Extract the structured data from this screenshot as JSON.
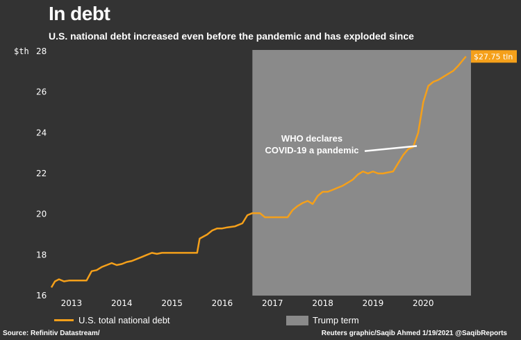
{
  "header": {
    "title": "In debt",
    "subtitle": "U.S. national debt increased even before the pandemic and has exploded since"
  },
  "chart_data": {
    "type": "line",
    "title": "In debt",
    "subtitle": "U.S. national debt increased even before the pandemic and has exploded since",
    "ylabel": "$th",
    "ylim": [
      16,
      28
    ],
    "yticks": [
      16,
      18,
      20,
      22,
      24,
      26,
      28
    ],
    "xlim": [
      2012.6,
      2020.95
    ],
    "xticks": [
      2013,
      2014,
      2015,
      2016,
      2017,
      2018,
      2019,
      2020
    ],
    "grid": false,
    "series": [
      {
        "name": "U.S. total national debt",
        "color": "#f5a01a",
        "x": [
          2012.6,
          2012.67,
          2012.75,
          2012.85,
          2012.95,
          2013.1,
          2013.3,
          2013.4,
          2013.5,
          2013.6,
          2013.7,
          2013.8,
          2013.9,
          2014.0,
          2014.1,
          2014.2,
          2014.3,
          2014.4,
          2014.5,
          2014.6,
          2014.7,
          2014.8,
          2015.0,
          2015.2,
          2015.4,
          2015.5,
          2015.55,
          2015.7,
          2015.8,
          2015.9,
          2016.0,
          2016.1,
          2016.25,
          2016.3,
          2016.4,
          2016.5,
          2016.6,
          2016.75,
          2016.85,
          2017.0,
          2017.2,
          2017.3,
          2017.4,
          2017.5,
          2017.6,
          2017.7,
          2017.8,
          2017.9,
          2018.0,
          2018.1,
          2018.2,
          2018.3,
          2018.4,
          2018.5,
          2018.6,
          2018.7,
          2018.8,
          2018.9,
          2019.0,
          2019.1,
          2019.2,
          2019.3,
          2019.4,
          2019.5,
          2019.6,
          2019.7,
          2019.8,
          2019.9,
          2020.0,
          2020.1,
          2020.2,
          2020.3,
          2020.4,
          2020.5,
          2020.6,
          2020.7,
          2020.8,
          2020.85
        ],
        "values": [
          16.4,
          16.7,
          16.8,
          16.7,
          16.74,
          16.74,
          16.74,
          17.2,
          17.25,
          17.4,
          17.5,
          17.6,
          17.5,
          17.55,
          17.65,
          17.7,
          17.8,
          17.9,
          18.0,
          18.1,
          18.05,
          18.1,
          18.1,
          18.1,
          18.1,
          18.1,
          18.8,
          19.0,
          19.2,
          19.3,
          19.3,
          19.35,
          19.4,
          19.45,
          19.55,
          19.95,
          20.05,
          20.05,
          19.85,
          19.85,
          19.85,
          19.85,
          20.2,
          20.4,
          20.55,
          20.65,
          20.5,
          20.9,
          21.1,
          21.1,
          21.2,
          21.3,
          21.4,
          21.55,
          21.7,
          21.95,
          22.1,
          22.0,
          22.1,
          22.0,
          22.0,
          22.05,
          22.1,
          22.5,
          22.9,
          23.2,
          23.3,
          24.0,
          25.5,
          26.3,
          26.5,
          26.6,
          26.75,
          26.9,
          27.05,
          27.3,
          27.6,
          27.75
        ]
      }
    ],
    "end_label": "$27.75 tln",
    "shaded_region": {
      "name": "Trump term",
      "from": 2016.6,
      "to": 2020.95,
      "color": "#8a8a8a"
    },
    "annotation": {
      "line1": "WHO declares",
      "line2": "COVID-19 a pandemic",
      "x": 2019.9,
      "y": 23.35
    }
  },
  "legend": {
    "series_label": "U.S. total national debt",
    "region_label": "Trump term"
  },
  "footer": {
    "source": "Source: Refinitiv Datastream/",
    "credit": "Reuters graphic/Saqib Ahmed 1/19/2021 @SaqibReports"
  }
}
